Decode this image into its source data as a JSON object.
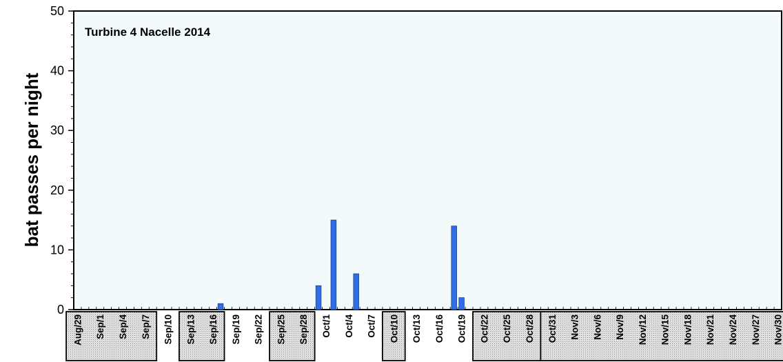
{
  "chart_data": {
    "type": "bar",
    "title": "Turbine 4 Nacelle 2014",
    "xlabel": "",
    "ylabel": "bat passes per night",
    "ylim": [
      0,
      50
    ],
    "yticks": [
      0,
      10,
      20,
      30,
      40,
      50
    ],
    "start_date": "Aug/29",
    "end_date": "Nov/30",
    "x_tick_labels": [
      "Aug/29",
      "Sep/1",
      "Sep/4",
      "Sep/7",
      "Sep/10",
      "Sep/13",
      "Sep/16",
      "Sep/19",
      "Sep/22",
      "Sep/25",
      "Sep/28",
      "Oct/1",
      "Oct/4",
      "Oct/7",
      "Oct/10",
      "Oct/13",
      "Oct/16",
      "Oct/19",
      "Oct/22",
      "Oct/25",
      "Oct/28",
      "Oct/31",
      "Nov/3",
      "Nov/6",
      "Nov/9",
      "Nov/12",
      "Nov/15",
      "Nov/18",
      "Nov/21",
      "Nov/24",
      "Nov/27",
      "Nov/30"
    ],
    "shaded_periods": [
      {
        "start": "Aug/29",
        "end": "Sep/7"
      },
      {
        "start": "Sep/13",
        "end": "Sep/16"
      },
      {
        "start": "Sep/25",
        "end": "Sep/28"
      },
      {
        "start": "Oct/10",
        "end": "Oct/10"
      },
      {
        "start": "Oct/22",
        "end": "Oct/28"
      },
      {
        "start": "Oct/31",
        "end": "Nov/30"
      }
    ],
    "series": [
      {
        "color": "#2f6ee6",
        "points": [
          {
            "date": "Sep/17",
            "value": 1
          },
          {
            "date": "Sep/30",
            "value": 4
          },
          {
            "date": "Oct/2",
            "value": 15
          },
          {
            "date": "Oct/5",
            "value": 6
          },
          {
            "date": "Oct/18",
            "value": 14
          },
          {
            "date": "Oct/19",
            "value": 2
          }
        ]
      }
    ],
    "plot_background": "#f3fafb",
    "grid": false
  }
}
